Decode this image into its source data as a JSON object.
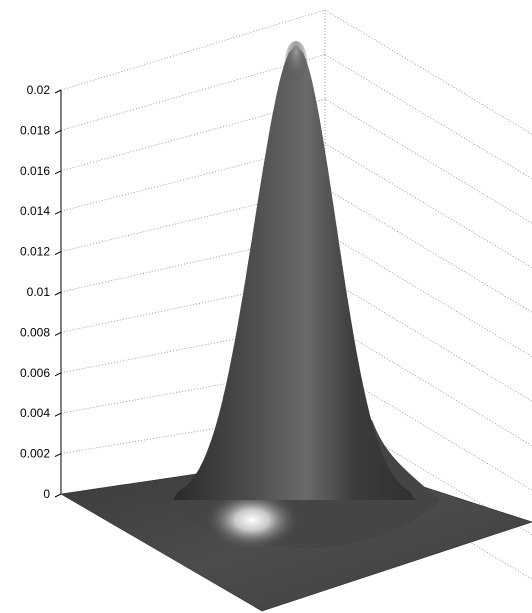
{
  "chart_data": {
    "type": "surface",
    "title": "",
    "xlabel": "",
    "ylabel": "",
    "zlabel": "",
    "zlim": [
      0,
      0.02
    ],
    "z_ticks": [
      0,
      0.002,
      0.004,
      0.006,
      0.008,
      0.01,
      0.012,
      0.014,
      0.016,
      0.018,
      0.02
    ],
    "z_tick_labels": [
      "0",
      "0.002",
      "0.004",
      "0.006",
      "0.008",
      "0.01",
      "0.012",
      "0.014",
      "0.016",
      "0.018",
      "0.02"
    ],
    "grid": true,
    "surface": {
      "shape": "gaussian-peak",
      "peak_value": 0.02,
      "base_value": 0,
      "color": "#4a4a4a",
      "highlight_color": "#ffffff"
    }
  }
}
